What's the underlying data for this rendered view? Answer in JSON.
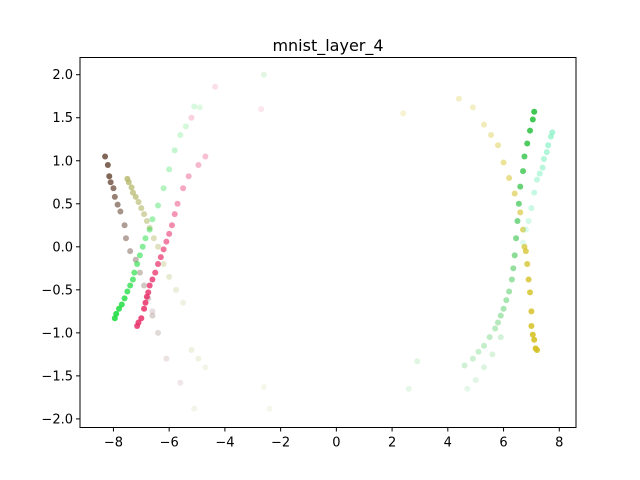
{
  "chart_data": {
    "type": "scatter",
    "title": "mnist_layer_4",
    "xlabel": "",
    "ylabel": "",
    "xlim": [
      -9.2,
      8.6
    ],
    "ylim": [
      -2.1,
      2.2
    ],
    "x_ticks": [
      -8,
      -6,
      -4,
      -2,
      0,
      2,
      4,
      6,
      8
    ],
    "y_ticks": [
      -2.0,
      -1.5,
      -1.0,
      -0.5,
      0.0,
      0.5,
      1.0,
      1.5,
      2.0
    ],
    "x_tick_labels": [
      "−8",
      "−6",
      "−4",
      "−2",
      "0",
      "2",
      "4",
      "6",
      "8"
    ],
    "y_tick_labels": [
      "−2.0",
      "−1.5",
      "−1.0",
      "−0.5",
      "0.0",
      "0.5",
      "1.0",
      "1.5",
      "2.0"
    ],
    "grid": false,
    "series": [
      {
        "color": "#6b4c3b",
        "points": [
          [
            -8.3,
            1.05
          ],
          [
            -8.2,
            0.95
          ],
          [
            -8.15,
            0.82
          ],
          [
            -8.1,
            0.75
          ],
          [
            -8.0,
            0.68
          ],
          [
            -7.95,
            0.58
          ],
          [
            -7.85,
            0.49
          ],
          [
            -7.75,
            0.41
          ],
          [
            -7.6,
            0.25
          ],
          [
            -7.55,
            0.1
          ],
          [
            -7.4,
            -0.05
          ],
          [
            -7.2,
            -0.15
          ],
          [
            -7.05,
            -0.3
          ],
          [
            -6.9,
            -0.45
          ],
          [
            -6.75,
            -0.6
          ],
          [
            -6.6,
            -0.8
          ],
          [
            -6.4,
            -1.0
          ]
        ],
        "alphas": [
          0.85,
          0.85,
          0.85,
          0.8,
          0.75,
          0.7,
          0.65,
          0.6,
          0.55,
          0.5,
          0.45,
          0.4,
          0.35,
          0.3,
          0.25,
          0.25,
          0.2
        ]
      },
      {
        "color": "#b5b86a",
        "points": [
          [
            -7.5,
            0.79
          ],
          [
            -7.45,
            0.75
          ],
          [
            -7.35,
            0.69
          ],
          [
            -7.3,
            0.63
          ],
          [
            -7.2,
            0.58
          ],
          [
            -7.1,
            0.52
          ],
          [
            -7.0,
            0.45
          ],
          [
            -6.9,
            0.38
          ],
          [
            -6.8,
            0.3
          ],
          [
            -6.7,
            0.22
          ],
          [
            -6.55,
            0.1
          ],
          [
            -6.4,
            0.0
          ],
          [
            -6.2,
            -0.2
          ],
          [
            -6.0,
            -0.35
          ],
          [
            -5.75,
            -0.5
          ],
          [
            -5.5,
            -0.65
          ],
          [
            -5.2,
            -1.2
          ],
          [
            -4.95,
            -1.3
          ],
          [
            -4.7,
            -1.4
          ],
          [
            -5.1,
            -1.88
          ],
          [
            -2.6,
            -1.63
          ],
          [
            -2.4,
            -1.88
          ]
        ],
        "alphas": [
          0.8,
          0.78,
          0.75,
          0.72,
          0.7,
          0.65,
          0.62,
          0.58,
          0.55,
          0.5,
          0.45,
          0.42,
          0.35,
          0.3,
          0.25,
          0.2,
          0.2,
          0.18,
          0.15,
          0.15,
          0.12,
          0.12
        ]
      },
      {
        "color": "#22dd44",
        "points": [
          [
            -7.95,
            -0.83
          ],
          [
            -7.9,
            -0.78
          ],
          [
            -7.8,
            -0.72
          ],
          [
            -7.7,
            -0.67
          ],
          [
            -7.6,
            -0.6
          ],
          [
            -7.5,
            -0.52
          ],
          [
            -7.4,
            -0.45
          ],
          [
            -7.3,
            -0.38
          ],
          [
            -7.25,
            -0.3
          ],
          [
            -7.15,
            -0.2
          ],
          [
            -7.05,
            -0.1
          ],
          [
            -6.95,
            0.0
          ],
          [
            -6.85,
            0.1
          ],
          [
            -6.7,
            0.2
          ],
          [
            -6.6,
            0.32
          ],
          [
            -6.4,
            0.48
          ],
          [
            -6.2,
            0.68
          ],
          [
            -6.0,
            0.9
          ],
          [
            -5.8,
            1.12
          ],
          [
            -5.6,
            1.3
          ],
          [
            -5.4,
            1.4
          ],
          [
            -5.1,
            1.63
          ],
          [
            -4.9,
            1.62
          ]
        ],
        "alphas": [
          0.9,
          0.9,
          0.88,
          0.85,
          0.82,
          0.78,
          0.74,
          0.7,
          0.66,
          0.62,
          0.58,
          0.54,
          0.5,
          0.46,
          0.42,
          0.38,
          0.34,
          0.3,
          0.26,
          0.22,
          0.2,
          0.18,
          0.15
        ]
      },
      {
        "color": "#e8306a",
        "points": [
          [
            -7.15,
            -0.92
          ],
          [
            -7.1,
            -0.88
          ],
          [
            -7.0,
            -0.83
          ],
          [
            -6.9,
            -0.72
          ],
          [
            -6.85,
            -0.65
          ],
          [
            -6.8,
            -0.58
          ],
          [
            -6.75,
            -0.53
          ],
          [
            -6.7,
            -0.45
          ],
          [
            -6.6,
            -0.38
          ],
          [
            -6.5,
            -0.3
          ],
          [
            -6.4,
            -0.2
          ],
          [
            -6.3,
            -0.12
          ],
          [
            -6.2,
            -0.03
          ],
          [
            -6.1,
            0.06
          ],
          [
            -6.0,
            0.15
          ],
          [
            -5.9,
            0.25
          ],
          [
            -5.8,
            0.38
          ],
          [
            -5.7,
            0.5
          ],
          [
            -5.5,
            0.68
          ],
          [
            -5.3,
            0.82
          ],
          [
            -4.95,
            0.95
          ],
          [
            -4.7,
            1.05
          ],
          [
            -5.2,
            1.5
          ],
          [
            -4.35,
            1.86
          ],
          [
            -2.7,
            1.6
          ]
        ],
        "alphas": [
          0.85,
          0.85,
          0.85,
          0.85,
          0.85,
          0.85,
          0.82,
          0.8,
          0.78,
          0.75,
          0.72,
          0.7,
          0.66,
          0.62,
          0.58,
          0.55,
          0.5,
          0.46,
          0.42,
          0.38,
          0.34,
          0.3,
          0.22,
          0.15,
          0.12
        ]
      },
      {
        "color": "#c0a0a0",
        "points": [
          [
            -6.6,
            -0.75
          ],
          [
            -6.1,
            -1.3
          ],
          [
            -5.6,
            -1.58
          ]
        ],
        "alphas": [
          0.35,
          0.3,
          0.25
        ]
      },
      {
        "color": "#90d890",
        "points": [
          [
            -2.6,
            2.0
          ]
        ],
        "alphas": [
          0.25
        ]
      },
      {
        "color": "#d4c020",
        "points": [
          [
            4.4,
            1.72
          ],
          [
            4.9,
            1.62
          ],
          [
            5.3,
            1.42
          ],
          [
            5.55,
            1.3
          ],
          [
            5.8,
            1.18
          ],
          [
            6.0,
            0.98
          ],
          [
            6.2,
            0.8
          ],
          [
            6.4,
            0.62
          ],
          [
            6.6,
            0.4
          ],
          [
            6.7,
            0.2
          ],
          [
            6.75,
            0.0
          ],
          [
            6.8,
            -0.05
          ],
          [
            6.85,
            -0.2
          ],
          [
            6.9,
            -0.38
          ],
          [
            6.95,
            -0.53
          ],
          [
            7.0,
            -0.75
          ],
          [
            7.0,
            -0.92
          ],
          [
            7.05,
            -1.02
          ],
          [
            7.1,
            -1.08
          ],
          [
            7.15,
            -1.18
          ],
          [
            7.2,
            -1.2
          ],
          [
            2.4,
            1.55
          ]
        ],
        "alphas": [
          0.25,
          0.25,
          0.3,
          0.35,
          0.4,
          0.45,
          0.5,
          0.55,
          0.6,
          0.65,
          0.7,
          0.72,
          0.75,
          0.78,
          0.8,
          0.82,
          0.84,
          0.86,
          0.88,
          0.9,
          0.9,
          0.2
        ]
      },
      {
        "color": "#2ac040",
        "points": [
          [
            7.1,
            1.57
          ],
          [
            7.05,
            1.48
          ],
          [
            6.95,
            1.35
          ],
          [
            6.85,
            1.2
          ],
          [
            6.75,
            1.05
          ],
          [
            6.7,
            0.88
          ],
          [
            6.6,
            0.7
          ],
          [
            6.55,
            0.5
          ],
          [
            6.5,
            0.3
          ],
          [
            6.45,
            0.1
          ],
          [
            6.4,
            -0.1
          ],
          [
            6.35,
            -0.25
          ],
          [
            6.3,
            -0.38
          ],
          [
            6.2,
            -0.52
          ],
          [
            6.1,
            -0.62
          ],
          [
            6.0,
            -0.72
          ],
          [
            5.9,
            -0.8
          ],
          [
            5.8,
            -0.88
          ],
          [
            5.7,
            -0.95
          ],
          [
            5.5,
            -1.05
          ],
          [
            5.3,
            -1.15
          ],
          [
            5.1,
            -1.22
          ],
          [
            4.9,
            -1.3
          ],
          [
            4.6,
            -1.38
          ],
          [
            5.9,
            -1.05
          ],
          [
            5.6,
            -1.25
          ],
          [
            5.3,
            -1.4
          ],
          [
            5.0,
            -1.55
          ],
          [
            4.7,
            -1.65
          ],
          [
            2.9,
            -1.33
          ],
          [
            2.6,
            -1.65
          ]
        ],
        "alphas": [
          0.9,
          0.88,
          0.85,
          0.82,
          0.78,
          0.74,
          0.7,
          0.66,
          0.62,
          0.58,
          0.55,
          0.5,
          0.46,
          0.44,
          0.42,
          0.4,
          0.38,
          0.35,
          0.33,
          0.3,
          0.28,
          0.26,
          0.24,
          0.22,
          0.2,
          0.18,
          0.16,
          0.14,
          0.12,
          0.15,
          0.12
        ]
      },
      {
        "color": "#80f0c0",
        "points": [
          [
            7.75,
            1.33
          ],
          [
            7.7,
            1.28
          ],
          [
            7.6,
            1.18
          ],
          [
            7.55,
            1.1
          ],
          [
            7.45,
            1.02
          ],
          [
            7.4,
            0.92
          ],
          [
            7.3,
            0.85
          ],
          [
            7.2,
            0.78
          ],
          [
            7.1,
            0.63
          ],
          [
            7.0,
            0.45
          ],
          [
            6.9,
            0.3
          ],
          [
            6.8,
            0.2
          ],
          [
            6.7,
            0.05
          ]
        ],
        "alphas": [
          0.7,
          0.68,
          0.65,
          0.62,
          0.6,
          0.56,
          0.52,
          0.48,
          0.44,
          0.4,
          0.35,
          0.3,
          0.25
        ]
      }
    ]
  }
}
